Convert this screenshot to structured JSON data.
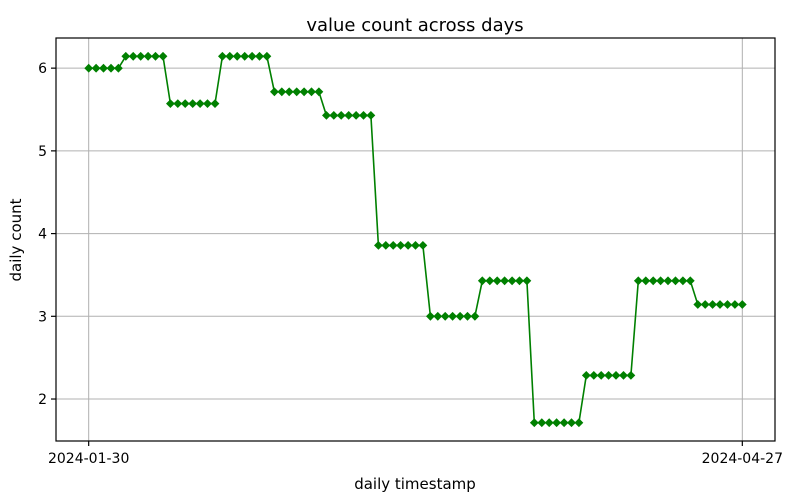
{
  "chart_data": {
    "type": "line",
    "title": "value count across days",
    "xlabel": "daily timestamp",
    "ylabel": "daily count",
    "line_color": "#008000",
    "marker": "diamond",
    "grid": true,
    "grid_color": "#b0b0b0",
    "spine_color": "#000000",
    "background_color": "#ffffff",
    "y_ticks": [
      2,
      3,
      4,
      5,
      6
    ],
    "x_tick_labels": [
      "2024-01-30",
      "2024-04-27"
    ],
    "x_tick_days": [
      0,
      88
    ],
    "n_points": 89,
    "xlim_days": [
      -4.4,
      92.4
    ],
    "ylim": [
      1.4925,
      6.3645
    ],
    "legend": null,
    "steps": [
      {
        "value": 6.0,
        "count": 5
      },
      {
        "value": 6.143,
        "count": 6
      },
      {
        "value": 5.571,
        "count": 7
      },
      {
        "value": 6.143,
        "count": 7
      },
      {
        "value": 5.714,
        "count": 7
      },
      {
        "value": 5.429,
        "count": 7
      },
      {
        "value": 3.857,
        "count": 7
      },
      {
        "value": 3.0,
        "count": 7
      },
      {
        "value": 3.429,
        "count": 7
      },
      {
        "value": 1.714,
        "count": 7
      },
      {
        "value": 2.286,
        "count": 7
      },
      {
        "value": 3.429,
        "count": 8
      },
      {
        "value": 3.143,
        "count": 7
      }
    ]
  }
}
